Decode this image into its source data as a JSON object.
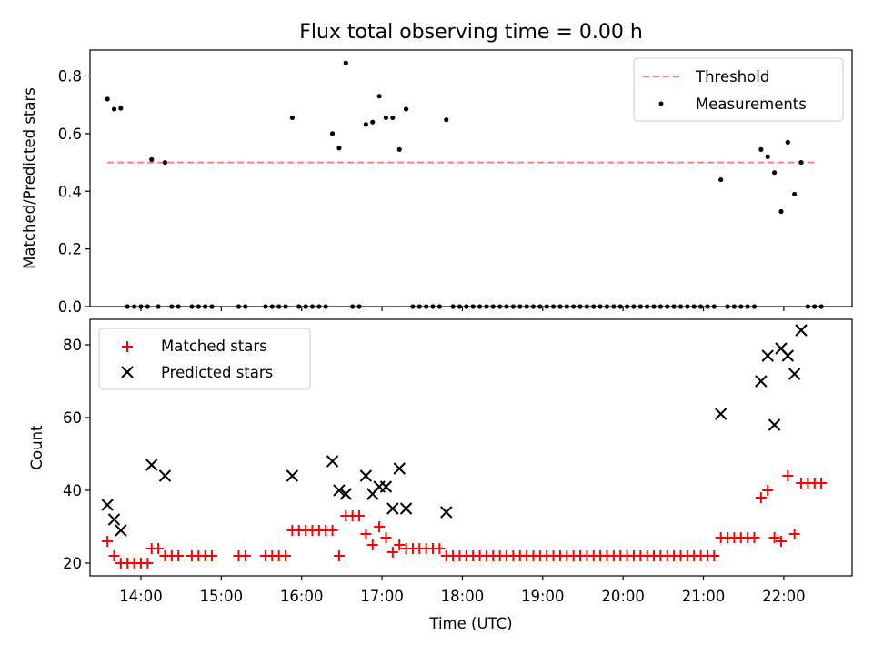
{
  "chart_data": [
    {
      "type": "scatter",
      "title": "Flux total observing time = 0.00 h",
      "ylabel": "Matched/Predicted stars",
      "xlabel": "",
      "xlim": [
        "13:22",
        "22:51"
      ],
      "ylim": [
        0,
        0.89
      ],
      "yticks": [
        "0.0",
        "0.2",
        "0.4",
        "0.6",
        "0.8"
      ],
      "legend_placement": "upper right",
      "threshold": {
        "name": "Threshold",
        "value": 0.5,
        "x_start": "13:35",
        "x_end": "22:25",
        "color": "#ff7f7f",
        "style": "dashed"
      },
      "series": [
        {
          "name": "Measurements",
          "color": "#000000",
          "marker": "dot",
          "points": [
            [
              "13:35",
              0.72
            ],
            [
              "13:40",
              0.685
            ],
            [
              "13:45",
              0.688
            ],
            [
              "13:50",
              0
            ],
            [
              "13:55",
              0
            ],
            [
              "14:00",
              0
            ],
            [
              "14:05",
              0
            ],
            [
              "14:08",
              0.51
            ],
            [
              "14:13",
              0
            ],
            [
              "14:18",
              0.5
            ],
            [
              "14:23",
              0
            ],
            [
              "14:28",
              0
            ],
            [
              "14:38",
              0
            ],
            [
              "14:43",
              0
            ],
            [
              "14:48",
              0
            ],
            [
              "14:53",
              0
            ],
            [
              "15:13",
              0
            ],
            [
              "15:18",
              0
            ],
            [
              "15:33",
              0
            ],
            [
              "15:38",
              0
            ],
            [
              "15:43",
              0
            ],
            [
              "15:48",
              0
            ],
            [
              "15:53",
              0.655
            ],
            [
              "15:58",
              0
            ],
            [
              "16:03",
              0
            ],
            [
              "16:08",
              0
            ],
            [
              "16:13",
              0
            ],
            [
              "16:18",
              0
            ],
            [
              "16:23",
              0.6
            ],
            [
              "16:28",
              0.55
            ],
            [
              "16:33",
              0.845
            ],
            [
              "16:38",
              0
            ],
            [
              "16:43",
              0
            ],
            [
              "16:48",
              0.632
            ],
            [
              "16:53",
              0.64
            ],
            [
              "16:58",
              0.73
            ],
            [
              "17:03",
              0.655
            ],
            [
              "17:08",
              0.655
            ],
            [
              "17:13",
              0.545
            ],
            [
              "17:18",
              0.685
            ],
            [
              "17:23",
              0
            ],
            [
              "17:28",
              0
            ],
            [
              "17:33",
              0
            ],
            [
              "17:38",
              0
            ],
            [
              "17:43",
              0
            ],
            [
              "17:48",
              0.648
            ],
            [
              "17:53",
              0
            ],
            [
              "17:58",
              0
            ],
            [
              "18:03",
              0
            ],
            [
              "18:08",
              0
            ],
            [
              "18:13",
              0
            ],
            [
              "18:18",
              0
            ],
            [
              "18:23",
              0
            ],
            [
              "18:28",
              0
            ],
            [
              "18:33",
              0
            ],
            [
              "18:38",
              0
            ],
            [
              "18:43",
              0
            ],
            [
              "18:48",
              0
            ],
            [
              "18:53",
              0
            ],
            [
              "18:58",
              0
            ],
            [
              "19:03",
              0
            ],
            [
              "19:08",
              0
            ],
            [
              "19:13",
              0
            ],
            [
              "19:18",
              0
            ],
            [
              "19:23",
              0
            ],
            [
              "19:28",
              0
            ],
            [
              "19:33",
              0
            ],
            [
              "19:38",
              0
            ],
            [
              "19:43",
              0
            ],
            [
              "19:48",
              0
            ],
            [
              "19:53",
              0
            ],
            [
              "19:58",
              0
            ],
            [
              "20:03",
              0
            ],
            [
              "20:08",
              0
            ],
            [
              "20:13",
              0
            ],
            [
              "20:18",
              0
            ],
            [
              "20:23",
              0
            ],
            [
              "20:28",
              0
            ],
            [
              "20:33",
              0
            ],
            [
              "20:38",
              0
            ],
            [
              "20:43",
              0
            ],
            [
              "20:48",
              0
            ],
            [
              "20:53",
              0
            ],
            [
              "20:58",
              0
            ],
            [
              "21:03",
              0
            ],
            [
              "21:08",
              0
            ],
            [
              "21:13",
              0.44
            ],
            [
              "21:18",
              0
            ],
            [
              "21:23",
              0
            ],
            [
              "21:28",
              0
            ],
            [
              "21:33",
              0
            ],
            [
              "21:38",
              0
            ],
            [
              "21:43",
              0.545
            ],
            [
              "21:48",
              0.52
            ],
            [
              "21:53",
              0.465
            ],
            [
              "21:58",
              0.33
            ],
            [
              "22:03",
              0.57
            ],
            [
              "22:08",
              0.39
            ],
            [
              "22:13",
              0.5
            ],
            [
              "22:18",
              0
            ],
            [
              "22:23",
              0
            ],
            [
              "22:28",
              0
            ]
          ]
        }
      ]
    },
    {
      "type": "scatter",
      "title": "",
      "xlabel": "Time (UTC)",
      "ylabel": "Count",
      "xlim": [
        "13:22",
        "22:51"
      ],
      "ylim": [
        16.5,
        87
      ],
      "xticks": [
        "14:00",
        "15:00",
        "16:00",
        "17:00",
        "18:00",
        "19:00",
        "20:00",
        "21:00",
        "22:00"
      ],
      "yticks": [
        "20",
        "40",
        "60",
        "80"
      ],
      "legend_placement": "upper left",
      "series": [
        {
          "name": "Matched stars",
          "color": "#ff0000",
          "marker": "plus",
          "points": [
            [
              "13:35",
              26
            ],
            [
              "13:40",
              22
            ],
            [
              "13:45",
              20
            ],
            [
              "13:50",
              20
            ],
            [
              "13:55",
              20
            ],
            [
              "14:00",
              20
            ],
            [
              "14:05",
              20
            ],
            [
              "14:08",
              24
            ],
            [
              "14:13",
              24
            ],
            [
              "14:18",
              22
            ],
            [
              "14:23",
              22
            ],
            [
              "14:28",
              22
            ],
            [
              "14:38",
              22
            ],
            [
              "14:43",
              22
            ],
            [
              "14:48",
              22
            ],
            [
              "14:53",
              22
            ],
            [
              "15:13",
              22
            ],
            [
              "15:18",
              22
            ],
            [
              "15:33",
              22
            ],
            [
              "15:38",
              22
            ],
            [
              "15:43",
              22
            ],
            [
              "15:48",
              22
            ],
            [
              "15:53",
              29
            ],
            [
              "15:58",
              29
            ],
            [
              "16:03",
              29
            ],
            [
              "16:08",
              29
            ],
            [
              "16:13",
              29
            ],
            [
              "16:18",
              29
            ],
            [
              "16:23",
              29
            ],
            [
              "16:28",
              22
            ],
            [
              "16:33",
              33
            ],
            [
              "16:38",
              33
            ],
            [
              "16:43",
              33
            ],
            [
              "16:48",
              28
            ],
            [
              "16:53",
              25
            ],
            [
              "16:58",
              30
            ],
            [
              "17:03",
              27
            ],
            [
              "17:08",
              23
            ],
            [
              "17:13",
              25
            ],
            [
              "17:18",
              24
            ],
            [
              "17:23",
              24
            ],
            [
              "17:28",
              24
            ],
            [
              "17:33",
              24
            ],
            [
              "17:38",
              24
            ],
            [
              "17:43",
              24
            ],
            [
              "17:48",
              22
            ],
            [
              "17:53",
              22
            ],
            [
              "17:58",
              22
            ],
            [
              "18:03",
              22
            ],
            [
              "18:08",
              22
            ],
            [
              "18:13",
              22
            ],
            [
              "18:18",
              22
            ],
            [
              "18:23",
              22
            ],
            [
              "18:28",
              22
            ],
            [
              "18:33",
              22
            ],
            [
              "18:38",
              22
            ],
            [
              "18:43",
              22
            ],
            [
              "18:48",
              22
            ],
            [
              "18:53",
              22
            ],
            [
              "18:58",
              22
            ],
            [
              "19:03",
              22
            ],
            [
              "19:08",
              22
            ],
            [
              "19:13",
              22
            ],
            [
              "19:18",
              22
            ],
            [
              "19:23",
              22
            ],
            [
              "19:28",
              22
            ],
            [
              "19:33",
              22
            ],
            [
              "19:38",
              22
            ],
            [
              "19:43",
              22
            ],
            [
              "19:48",
              22
            ],
            [
              "19:53",
              22
            ],
            [
              "19:58",
              22
            ],
            [
              "20:03",
              22
            ],
            [
              "20:08",
              22
            ],
            [
              "20:13",
              22
            ],
            [
              "20:18",
              22
            ],
            [
              "20:23",
              22
            ],
            [
              "20:28",
              22
            ],
            [
              "20:33",
              22
            ],
            [
              "20:38",
              22
            ],
            [
              "20:43",
              22
            ],
            [
              "20:48",
              22
            ],
            [
              "20:53",
              22
            ],
            [
              "20:58",
              22
            ],
            [
              "21:03",
              22
            ],
            [
              "21:08",
              22
            ],
            [
              "21:13",
              27
            ],
            [
              "21:18",
              27
            ],
            [
              "21:23",
              27
            ],
            [
              "21:28",
              27
            ],
            [
              "21:33",
              27
            ],
            [
              "21:38",
              27
            ],
            [
              "21:43",
              38
            ],
            [
              "21:48",
              40
            ],
            [
              "21:53",
              27
            ],
            [
              "21:58",
              26
            ],
            [
              "22:03",
              44
            ],
            [
              "22:08",
              28
            ],
            [
              "22:13",
              42
            ],
            [
              "22:18",
              42
            ],
            [
              "22:23",
              42
            ],
            [
              "22:28",
              42
            ]
          ]
        },
        {
          "name": "Predicted stars",
          "color": "#000000",
          "marker": "x",
          "points": [
            [
              "13:35",
              36
            ],
            [
              "13:40",
              32
            ],
            [
              "13:45",
              29
            ],
            [
              "14:08",
              47
            ],
            [
              "14:18",
              44
            ],
            [
              "15:53",
              44
            ],
            [
              "16:23",
              48
            ],
            [
              "16:28",
              40
            ],
            [
              "16:33",
              39
            ],
            [
              "16:48",
              44
            ],
            [
              "16:53",
              39
            ],
            [
              "16:58",
              41
            ],
            [
              "17:03",
              41
            ],
            [
              "17:08",
              35
            ],
            [
              "17:13",
              46
            ],
            [
              "17:18",
              35
            ],
            [
              "17:48",
              34
            ],
            [
              "21:13",
              61
            ],
            [
              "21:43",
              70
            ],
            [
              "21:48",
              77
            ],
            [
              "21:53",
              58
            ],
            [
              "21:58",
              79
            ],
            [
              "22:03",
              77
            ],
            [
              "22:08",
              72
            ],
            [
              "22:13",
              84
            ]
          ]
        }
      ]
    }
  ]
}
